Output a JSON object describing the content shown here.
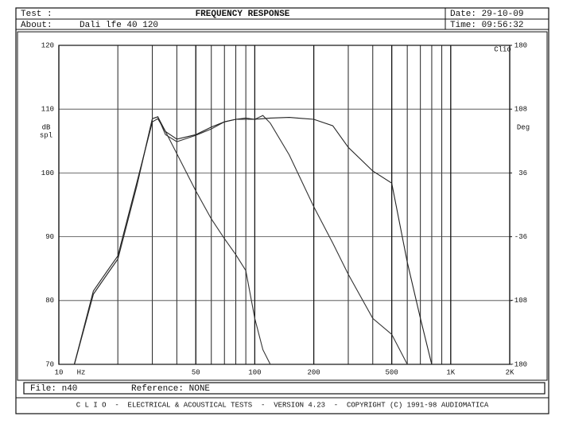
{
  "header": {
    "test": "Test :",
    "title": "FREQUENCY RESPONSE",
    "date": "Date: 29-10-09",
    "about_label": "About:",
    "about": "Dali lfe 40 120",
    "time": "Time: 09:56:32"
  },
  "chart_data": {
    "type": "line",
    "log_x": true,
    "grid": true,
    "y_label_top": "dB",
    "y_label_bottom": "spl",
    "y2_label": "Deg",
    "x_unit": "Hz",
    "logo": "Clio",
    "xlim": [
      10,
      2000
    ],
    "xticks": [
      10,
      50,
      100,
      200,
      500,
      {
        "value": 1000,
        "label": "1K"
      },
      {
        "value": 2000,
        "label": "2K"
      }
    ],
    "ylim": [
      70,
      120
    ],
    "yticks": [
      120,
      110,
      100,
      90,
      80,
      70
    ],
    "y2lim": [
      -180,
      180
    ],
    "y2ticks": [
      180,
      108,
      36,
      -36,
      -108,
      -180
    ],
    "x": [
      12,
      15,
      18,
      20,
      25,
      30,
      32,
      35,
      40,
      50,
      60,
      70,
      80,
      90,
      100,
      110,
      120,
      150,
      200,
      250,
      300,
      400,
      500,
      600,
      700,
      800
    ],
    "series": [
      {
        "color": "#333333",
        "values": [
          70,
          81,
          84.5,
          86.5,
          98,
          108.5,
          108.8,
          106.5,
          103,
          97.2,
          92.8,
          89.7,
          87.2,
          84.7,
          77.2,
          72.3,
          70,
          null,
          null,
          null,
          null,
          null,
          null,
          null,
          null,
          null
        ]
      },
      {
        "color": "#333333",
        "values": [
          70,
          81,
          84.5,
          86.5,
          98,
          108.5,
          108.8,
          106,
          104.9,
          105.9,
          106.9,
          108,
          108.4,
          108.4,
          108.4,
          109,
          107.8,
          102.8,
          94.7,
          89,
          84.1,
          77.2,
          74.7,
          70,
          null,
          null
        ]
      },
      {
        "color": "#222222",
        "values": [
          70,
          81.5,
          85,
          87,
          98.5,
          108,
          108.5,
          106.5,
          105.3,
          106,
          107.2,
          108,
          108.4,
          108.6,
          108.4,
          108.5,
          108.6,
          108.7,
          108.4,
          107.4,
          104,
          100.3,
          98.4,
          86,
          77.2,
          70
        ]
      }
    ]
  },
  "footer": {
    "file": "File: n40",
    "reference": "Reference: NONE",
    "banner": "C L I O  -  ELECTRICAL & ACOUSTICAL TESTS  -  VERSION 4.23  -  COPYRIGHT (C) 1991-98 AUDIOMATICA"
  }
}
